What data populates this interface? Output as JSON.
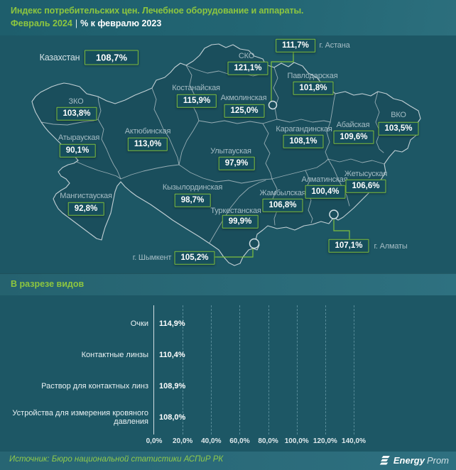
{
  "header": {
    "title": "Индекс потребительских цен. Лечебное оборудование и аппараты.",
    "period": "Февраль 2024",
    "separator": "|",
    "subtitle": "% к февралю 2023"
  },
  "map": {
    "country": {
      "name": "Казахстан",
      "value": "108,7%"
    },
    "regions": [
      {
        "name": "СКО",
        "value": "121,1%"
      },
      {
        "name": "Павлодарская",
        "value": "101,8%"
      },
      {
        "name": "Костанайская",
        "value": "115,9%"
      },
      {
        "name": "Акмолинская",
        "value": "125,0%"
      },
      {
        "name": "ВКО",
        "value": "103,5%"
      },
      {
        "name": "Абайская",
        "value": "109,6%"
      },
      {
        "name": "Карагандинская",
        "value": "108,1%"
      },
      {
        "name": "ЗКО",
        "value": "103,8%"
      },
      {
        "name": "Актюбинская",
        "value": "113,0%"
      },
      {
        "name": "Атырауская",
        "value": "90,1%"
      },
      {
        "name": "Улытауская",
        "value": "97,9%"
      },
      {
        "name": "Мангистауская",
        "value": "92,8%"
      },
      {
        "name": "Кызылординская",
        "value": "98,7%"
      },
      {
        "name": "Туркестанская",
        "value": "99,9%"
      },
      {
        "name": "Жамбылская",
        "value": "106,8%"
      },
      {
        "name": "Алматинская",
        "value": "100,4%"
      },
      {
        "name": "Жетысуская",
        "value": "106,6%"
      }
    ],
    "cities": [
      {
        "name": "г. Астана",
        "value": "111,7%"
      },
      {
        "name": "г. Алматы",
        "value": "107,1%"
      },
      {
        "name": "г. Шымкент",
        "value": "105,2%"
      }
    ]
  },
  "section": {
    "title": "В разрезе видов"
  },
  "chart_data": {
    "type": "bar",
    "orientation": "horizontal",
    "categories": [
      "Очки",
      "Контактные линзы",
      "Раствор для контактных линз",
      "Устройства для измерения кровяного давления"
    ],
    "values": [
      114.9,
      110.4,
      108.9,
      108.0
    ],
    "value_labels": [
      "114,9%",
      "110,4%",
      "108,9%",
      "108,0%"
    ],
    "x_ticks": [
      "0,0%",
      "20,0%",
      "40,0%",
      "60,0%",
      "80,0%",
      "100,0%",
      "120,0%",
      "140,0%"
    ],
    "xlim": [
      0,
      140
    ],
    "bar_color": "#8dc63f",
    "grid": "dashed-vertical",
    "legend": "none"
  },
  "footer": {
    "source": "Источник: Бюро национальной статистики АСПиР РК",
    "brand_bold": "Energy",
    "brand_regular": "Prom"
  },
  "colors": {
    "accent_green": "#8dc63f",
    "box_border": "#7fbf3e",
    "background": "#1d5765",
    "map_fill": "#1a4e5c",
    "map_border": "#b6c6cb"
  }
}
